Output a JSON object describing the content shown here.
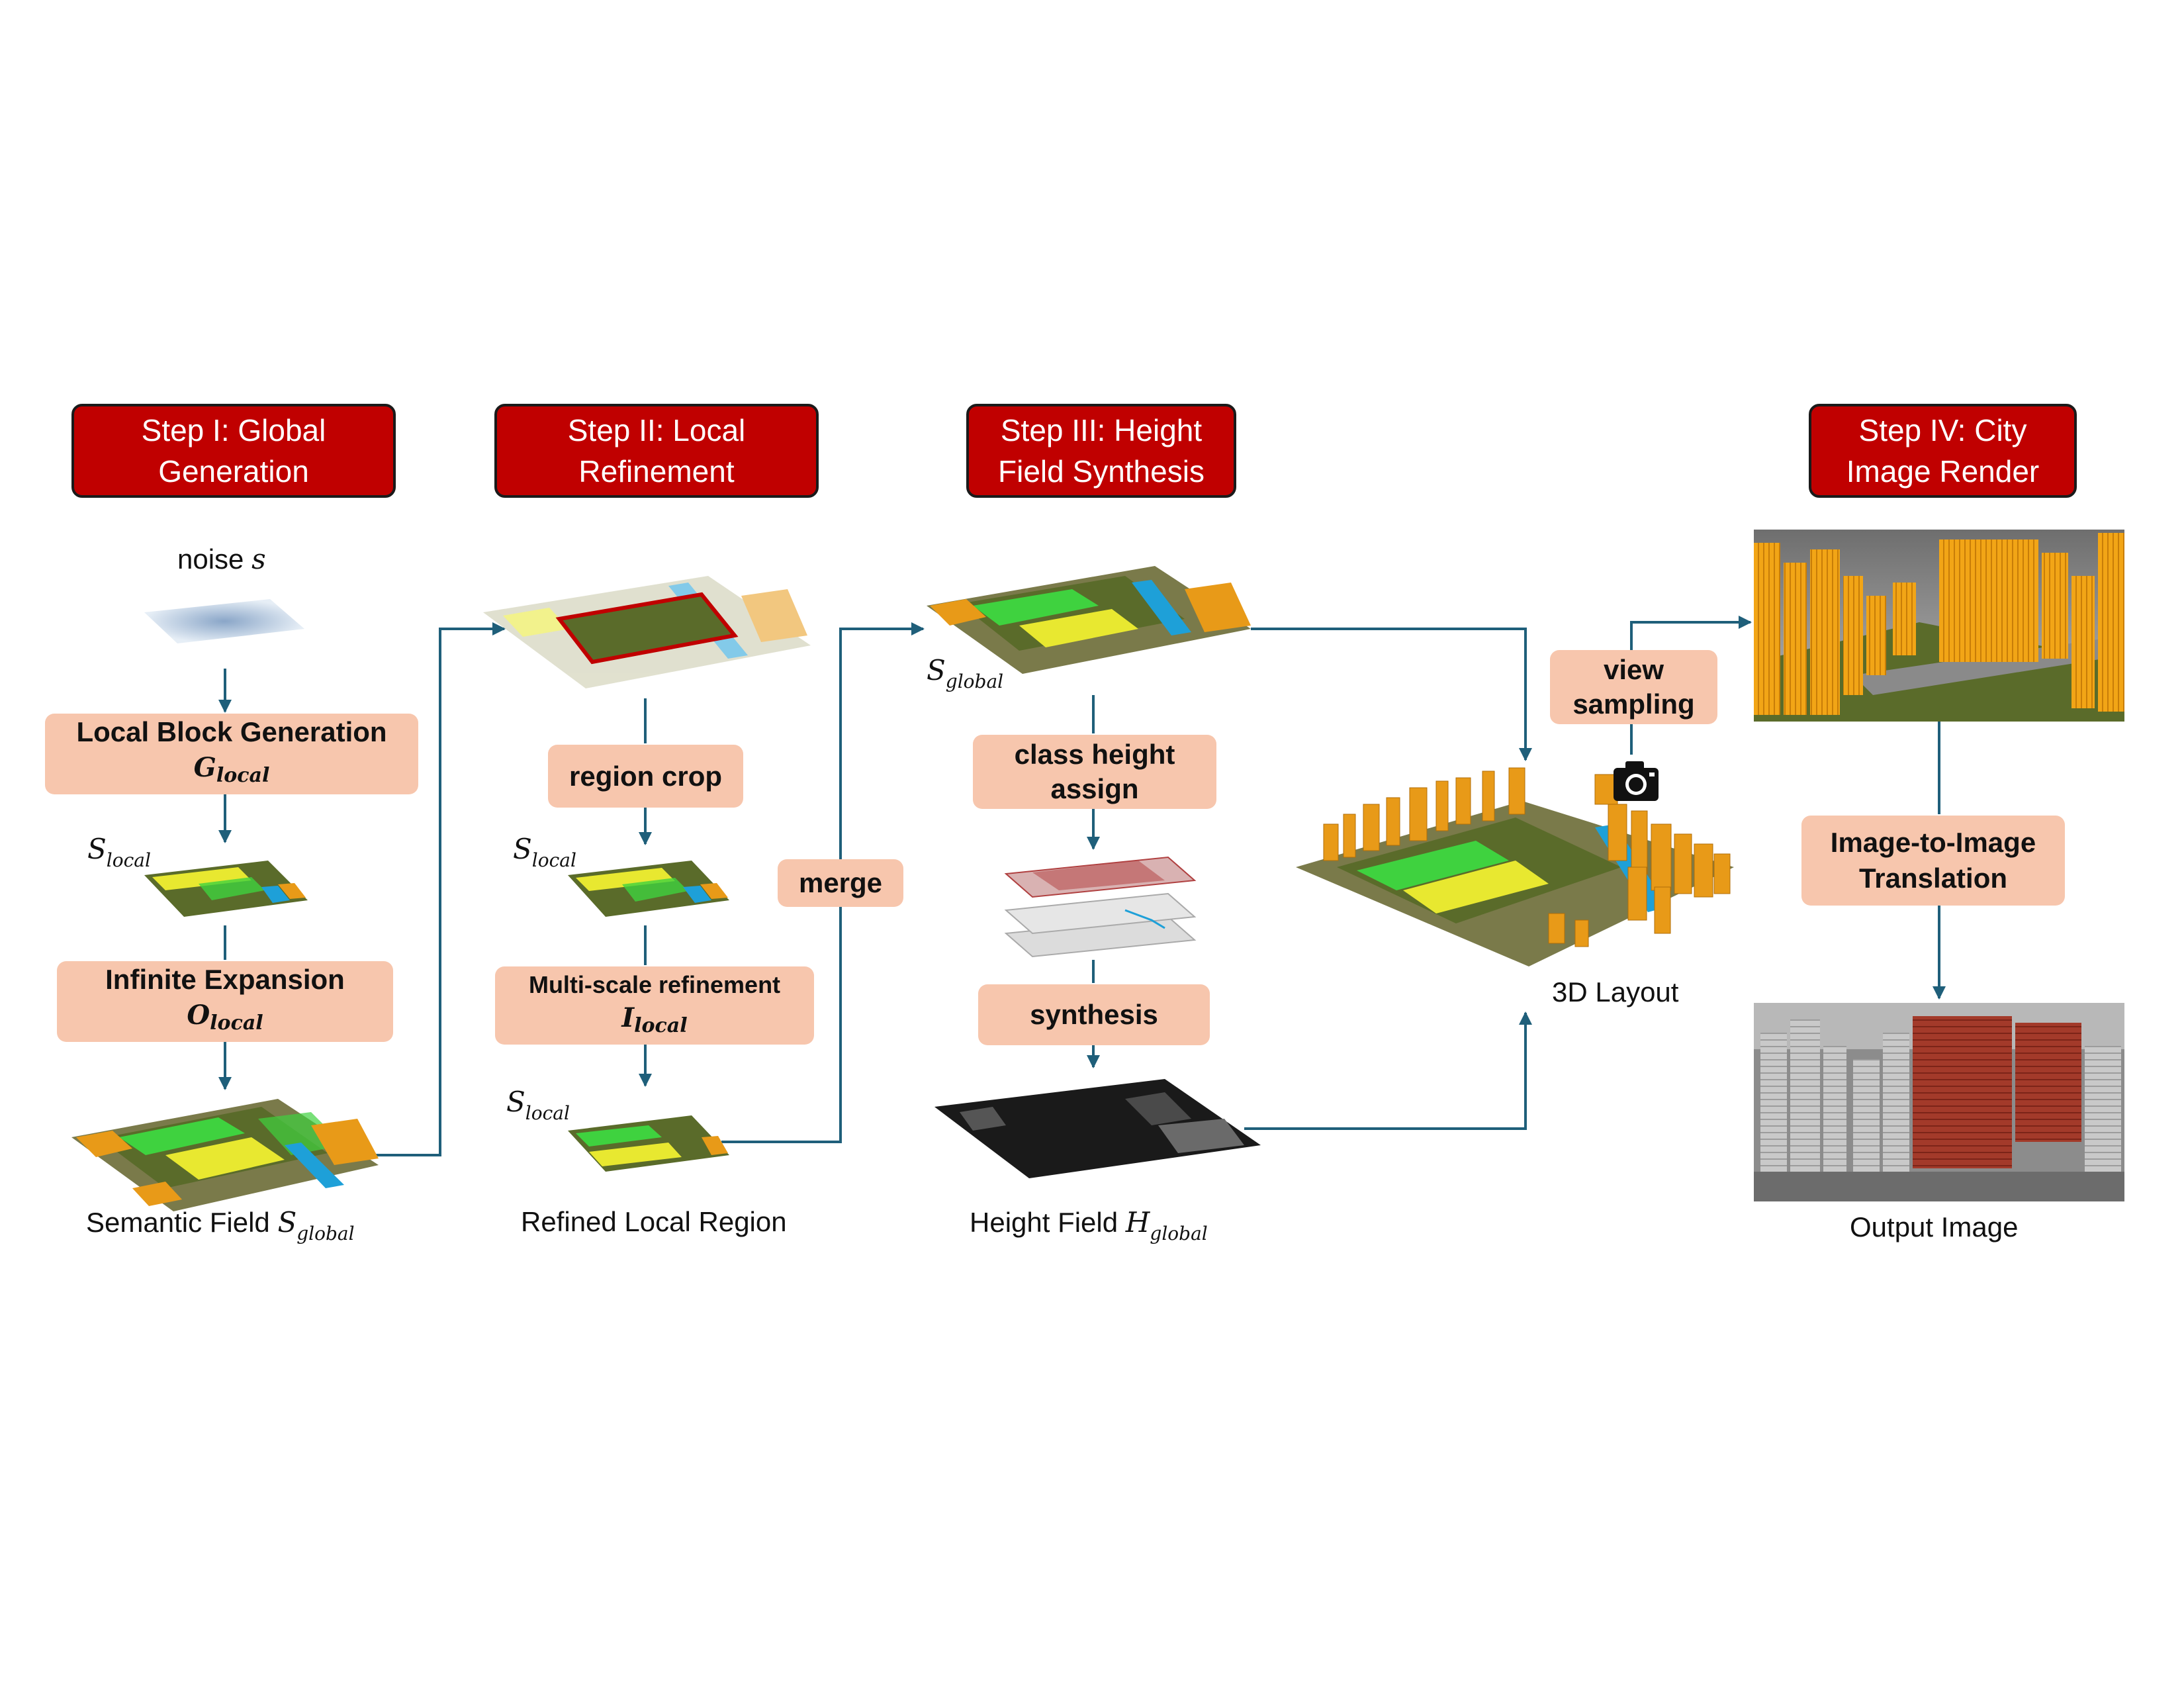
{
  "steps": [
    {
      "title": "Step I: Global Generation"
    },
    {
      "title": "Step II: Local Refinement"
    },
    {
      "title": "Step III: Height Field Synthesis"
    },
    {
      "title": "Step IV: City Image Render"
    }
  ],
  "step1": {
    "noise_label": "noise",
    "noise_symbol": "s",
    "local_block": {
      "label": "Local Block Generation",
      "symbol": "G",
      "sub": "local"
    },
    "s_local": {
      "symbol": "S",
      "sub": "local"
    },
    "infinite_expansion": {
      "label": "Infinite Expansion",
      "symbol": "O",
      "sub": "local"
    },
    "caption": "Semantic Field",
    "caption_symbol": "S",
    "caption_sub": "global"
  },
  "step2": {
    "region_crop": "region crop",
    "s_local_a": {
      "symbol": "S",
      "sub": "local"
    },
    "multiscale": {
      "label": "Multi-scale refinement",
      "symbol": "I",
      "sub": "local"
    },
    "s_local_b": {
      "symbol": "S",
      "sub": "local"
    },
    "caption": "Refined Local Region",
    "merge": "merge"
  },
  "step3": {
    "s_global": {
      "symbol": "S",
      "sub": "global"
    },
    "class_height": "class height assign",
    "synthesis": "synthesis",
    "caption": "Height Field",
    "caption_symbol": "H",
    "caption_sub": "global"
  },
  "layout3d": {
    "caption": "3D Layout",
    "view_sampling": "view sampling",
    "camera_icon": "camera-icon"
  },
  "step4": {
    "translation": "Image-to-Image Translation",
    "caption": "Output Image"
  },
  "colors": {
    "header_bg": "#c00000",
    "process_bg": "#f7c6ad",
    "arrow": "#1f5f7a",
    "park": "#5a6b2a",
    "green": "#3fd23f",
    "yellow": "#e8e830",
    "building": "#e89a18",
    "water": "#1ea0d8"
  }
}
